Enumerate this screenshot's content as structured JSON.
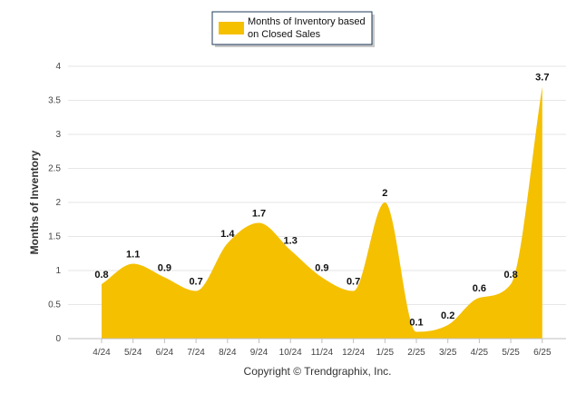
{
  "chart_data": {
    "type": "area",
    "categories": [
      "4/24",
      "5/24",
      "6/24",
      "7/24",
      "8/24",
      "9/24",
      "10/24",
      "11/24",
      "12/24",
      "1/25",
      "2/25",
      "3/25",
      "4/25",
      "5/25",
      "6/25"
    ],
    "series": [
      {
        "name": "Months of Inventory based on Closed Sales",
        "values": [
          0.8,
          1.1,
          0.9,
          0.7,
          1.4,
          1.7,
          1.3,
          0.9,
          0.7,
          2,
          0.1,
          0.2,
          0.6,
          0.8,
          3.7
        ],
        "data_labels": [
          "0.8",
          "1.1",
          "0.9",
          "0.7",
          "1.4",
          "1.7",
          "1.3",
          "0.9",
          "0.7",
          "2",
          "0.1",
          "0.2",
          "0.6",
          "0.8",
          "3.7"
        ],
        "color": "#f5c000"
      }
    ],
    "yticks": [
      "0",
      "0.5",
      "1",
      "1.5",
      "2",
      "2.5",
      "3",
      "3.5",
      "4"
    ],
    "ylim": [
      0,
      4
    ],
    "ylabel": "Months of Inventory",
    "xlabel": "",
    "grid": true,
    "legend_position": "top-center",
    "legend_lines": [
      "Months of Inventory based",
      "on Closed Sales"
    ]
  },
  "footer": {
    "copyright": "Copyright © Trendgraphix, Inc."
  },
  "colors": {
    "area": "#f5c000",
    "grid": "#e6e6e6",
    "legend_border": "#1f3a5a"
  }
}
